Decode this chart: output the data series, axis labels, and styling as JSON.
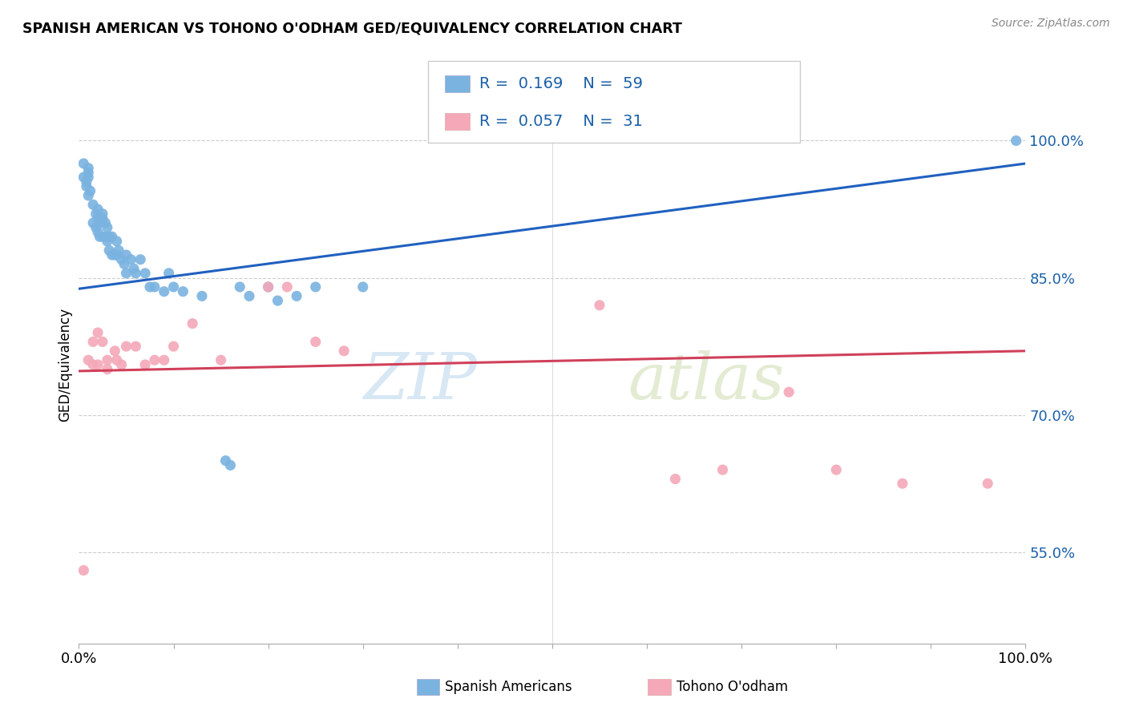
{
  "title": "SPANISH AMERICAN VS TOHONO O'ODHAM GED/EQUIVALENCY CORRELATION CHART",
  "source": "Source: ZipAtlas.com",
  "ylabel": "GED/Equivalency",
  "y_ticks": [
    0.55,
    0.7,
    0.85,
    1.0
  ],
  "y_tick_labels": [
    "55.0%",
    "70.0%",
    "85.0%",
    "100.0%"
  ],
  "x_tick_labels": [
    "0.0%",
    "100.0%"
  ],
  "legend_labels": [
    "Spanish Americans",
    "Tohono O'odham"
  ],
  "legend_R": [
    "0.169",
    "0.057"
  ],
  "legend_N": [
    "59",
    "31"
  ],
  "blue_color": "#7ab3e0",
  "pink_color": "#f4a8b8",
  "line_blue": "#2060c0",
  "line_pink": "#d0405a",
  "text_blue": "#1a5fa8",
  "watermark_zip": "ZIP",
  "watermark_atlas": "atlas",
  "blue_scatter_x": [
    0.005,
    0.005,
    0.008,
    0.008,
    0.01,
    0.01,
    0.01,
    0.01,
    0.012,
    0.015,
    0.015,
    0.018,
    0.018,
    0.02,
    0.02,
    0.02,
    0.022,
    0.022,
    0.025,
    0.025,
    0.025,
    0.028,
    0.028,
    0.03,
    0.03,
    0.032,
    0.032,
    0.035,
    0.035,
    0.038,
    0.04,
    0.04,
    0.042,
    0.045,
    0.048,
    0.05,
    0.05,
    0.055,
    0.058,
    0.06,
    0.065,
    0.07,
    0.075,
    0.08,
    0.09,
    0.095,
    0.1,
    0.11,
    0.13,
    0.155,
    0.16,
    0.17,
    0.18,
    0.2,
    0.21,
    0.23,
    0.25,
    0.3,
    0.99
  ],
  "blue_scatter_y": [
    0.975,
    0.96,
    0.955,
    0.95,
    0.97,
    0.965,
    0.96,
    0.94,
    0.945,
    0.93,
    0.91,
    0.92,
    0.905,
    0.925,
    0.915,
    0.9,
    0.91,
    0.895,
    0.92,
    0.915,
    0.895,
    0.91,
    0.895,
    0.905,
    0.89,
    0.895,
    0.88,
    0.895,
    0.875,
    0.875,
    0.89,
    0.875,
    0.88,
    0.87,
    0.865,
    0.875,
    0.855,
    0.87,
    0.86,
    0.855,
    0.87,
    0.855,
    0.84,
    0.84,
    0.835,
    0.855,
    0.84,
    0.835,
    0.83,
    0.65,
    0.645,
    0.84,
    0.83,
    0.84,
    0.825,
    0.83,
    0.84,
    0.84,
    1.0
  ],
  "pink_scatter_x": [
    0.005,
    0.01,
    0.015,
    0.015,
    0.02,
    0.02,
    0.025,
    0.03,
    0.03,
    0.038,
    0.04,
    0.045,
    0.05,
    0.06,
    0.07,
    0.08,
    0.09,
    0.1,
    0.12,
    0.15,
    0.2,
    0.22,
    0.25,
    0.28,
    0.55,
    0.63,
    0.68,
    0.75,
    0.8,
    0.87,
    0.96
  ],
  "pink_scatter_y": [
    0.53,
    0.76,
    0.78,
    0.755,
    0.79,
    0.755,
    0.78,
    0.76,
    0.75,
    0.77,
    0.76,
    0.755,
    0.775,
    0.775,
    0.755,
    0.76,
    0.76,
    0.775,
    0.8,
    0.76,
    0.84,
    0.84,
    0.78,
    0.77,
    0.82,
    0.63,
    0.64,
    0.725,
    0.64,
    0.625,
    0.625
  ],
  "blue_line_x": [
    0.0,
    1.0
  ],
  "blue_line_y": [
    0.838,
    0.975
  ],
  "pink_line_x": [
    0.0,
    1.0
  ],
  "pink_line_y": [
    0.748,
    0.77
  ],
  "xlim": [
    0.0,
    1.0
  ],
  "ylim": [
    0.45,
    1.06
  ],
  "xticks": [
    0.0,
    0.1,
    0.2,
    0.3,
    0.4,
    0.5,
    0.6,
    0.7,
    0.8,
    0.9,
    1.0
  ]
}
